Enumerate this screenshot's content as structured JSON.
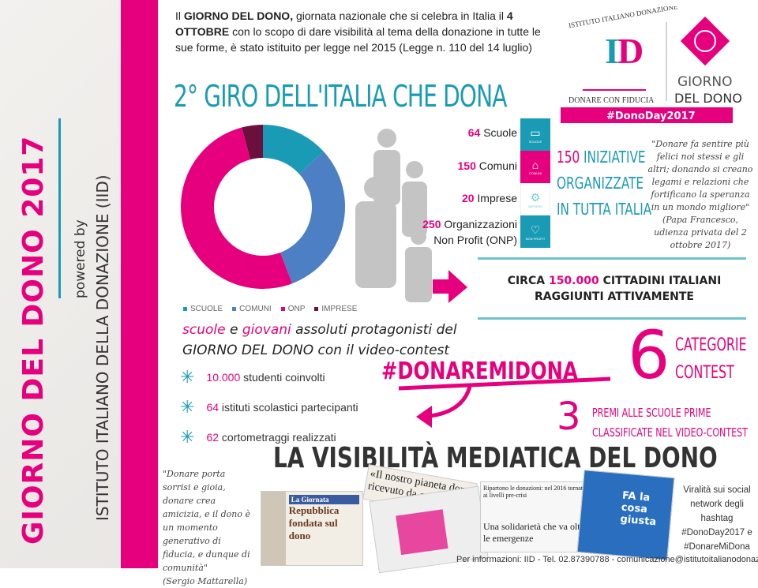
{
  "sidebar": {
    "title": "GIORNO DEL DONO 2017",
    "powered_by": "powered by",
    "institute": "ISTITUTO ITALIANO DELLA DONAZIONE (IID)"
  },
  "intro": {
    "p1": "Il ",
    "b1": "GIORNO DEL DONO,",
    "p2": " giornata nazionale che si celebra in Italia il ",
    "b2": "4 OTTOBRE",
    "p3": " con lo scopo di dare visibilità al tema della donazione in tutte le sue forme, è stato istituito per legge nel 2015 (Legge n. 110 del 14 luglio)"
  },
  "title": "2° GIRO DELL'ITALIA CHE DONA",
  "logo": {
    "arc": "ISTITUTO ITALIANO DONAZIONE",
    "mark": "ID",
    "tagline": "DONARE CON FIDUCIA",
    "giorno": "GIORNO",
    "del_dono": "DEL DONO",
    "hashtag": "#DonoDay2017"
  },
  "chart_data": {
    "type": "pie",
    "donut": true,
    "categories": [
      "SCUOLE",
      "COMUNI",
      "ONP",
      "IMPRESE"
    ],
    "values": [
      64,
      150,
      250,
      20
    ],
    "colors": [
      "#1a9bb5",
      "#4d7fc4",
      "#e6007e",
      "#6b0f3d"
    ],
    "legend": "bottom"
  },
  "stats": [
    {
      "num": "64",
      "label": "Scuole",
      "icon": "book-icon",
      "icon_label": "SCUOLE",
      "color": "#1a9bb5"
    },
    {
      "num": "150",
      "label": "Comuni",
      "icon": "building-icon",
      "icon_label": "COMUNI",
      "color": "#e6007e"
    },
    {
      "num": "20",
      "label": "Imprese",
      "icon": "gears-icon",
      "icon_label": "IMPRESE",
      "color": "#ffffff"
    },
    {
      "num": "250",
      "label": "Organizzazioni Non Profit (ONP)",
      "icon": "heart-icon",
      "icon_label": "NON PROFIT",
      "color": "#1a9bb5"
    }
  ],
  "iniziative": {
    "num": "150",
    "l1": " INIZIATIVE",
    "l2": "ORGANIZZATE",
    "l3": "IN TUTTA ITALIA"
  },
  "pope_quote": {
    "text": "\"Donare fa sentire più felici noi stessi e gli altri; donando si creano legami e relazioni che fortificano la speranza in un mondo migliore\"",
    "source": "(Papa Francesco, udienza privata del 2 ottobre 2017)"
  },
  "reach": {
    "pre": "CIRCA ",
    "num": "150.000",
    "post": " CITTADINI ITALIANI",
    "l2": "RAGGIUNTI ATTIVAMENTE"
  },
  "schools": {
    "w1": "scuole",
    "t1": " e ",
    "w2": "giovani",
    "t2": " assoluti protagonisti del",
    "l2": "GIORNO DEL DONO con il video-contest"
  },
  "bullets": [
    {
      "num": "10.000",
      "text": " studenti coinvolti"
    },
    {
      "num": "64",
      "text": " istituti scolastici partecipanti"
    },
    {
      "num": "62",
      "text": " cortometraggi realizzati"
    }
  ],
  "contest": {
    "hashtag": "#DONAREMIDONA",
    "six": "6",
    "cat1": "CATEGORIE",
    "cat2": "CONTEST",
    "three": "3",
    "premi1": "PREMI ALLE SCUOLE PRIME",
    "premi2": "CLASSIFICATE NEL VIDEO-CONTEST"
  },
  "media": {
    "title": "LA VISIBILITÀ MEDIATICA DEL DONO",
    "mattarella": "\"Donare porta sorrisi e gioia, donare crea amicizia, e il dono è un momento generativo di fiducia, e dunque di comunità\"",
    "mattarella_src": "(Sergio Mattarella)",
    "press1_head": "La Giornata",
    "press1_title": "Repubblica fondata sul dono",
    "press2": "«Il nostro pianeta dono ricevuto da co",
    "press3_head": "Ripartono le donazioni: nel 2016 tornate ai livelli pre-crisi",
    "press4": "Una solidarietà che va oltre le emergenze",
    "tv": "FA la cosa giusta",
    "viral": "Viralità sui social network degli hashtag #DonoDay2017 e #DonareMiDona"
  },
  "footer": "Per informazioni: IID - Tel. 02.87390788 - comunicazione@istitutoitalianodonazione.it"
}
